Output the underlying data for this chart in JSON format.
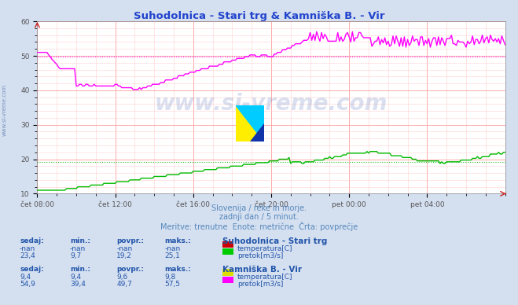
{
  "title": "Suhodolnica - Stari trg & Kamniška B. - Vir",
  "title_color": "#2244cc",
  "bg_color": "#d4dff0",
  "plot_bg_color": "#ffffff",
  "grid_color_major": "#ffaaaa",
  "grid_color_minor": "#ffd0d0",
  "tick_color": "#555555",
  "xlim": [
    0,
    288
  ],
  "ylim": [
    10,
    60
  ],
  "yticks": [
    10,
    20,
    30,
    40,
    50,
    60
  ],
  "xtick_labels": [
    "čet 08:00",
    "čet 12:00",
    "čet 16:00",
    "čet 20:00",
    "pet 00:00",
    "pet 04:00"
  ],
  "xtick_positions": [
    0,
    48,
    96,
    144,
    192,
    240
  ],
  "watermark": "www.si-vreme.com",
  "subtitle1": "Slovenija / reke in morje.",
  "subtitle2": "zadnji dan / 5 minut.",
  "subtitle3": "Meritve: trenutne  Enote: metrične  Črta: povprečje",
  "subtitle_color": "#5588bb",
  "dashed_pink_y": 49.7,
  "dashed_green_y": 19.2,
  "line_green_color": "#00bb00",
  "line_pink_color": "#ff00ff",
  "table_data": {
    "station1": "Suhodolnica - Stari trg",
    "station2": "Kamniška B. - Vir",
    "s1_row1": [
      "-nan",
      "-nan",
      "-nan",
      "-nan"
    ],
    "s1_row2": [
      "23,4",
      "9,7",
      "19,2",
      "25,1"
    ],
    "s1_colors": [
      "#cc0000",
      "#00cc00"
    ],
    "s2_row1": [
      "9,4",
      "9,4",
      "9,6",
      "9,8"
    ],
    "s2_row2": [
      "54,9",
      "39,4",
      "49,7",
      "57,5"
    ],
    "s2_colors": [
      "#dddd00",
      "#ff00ff"
    ]
  },
  "left_label_color": "#5588bb",
  "axis_arrow_color": "#cc2222"
}
